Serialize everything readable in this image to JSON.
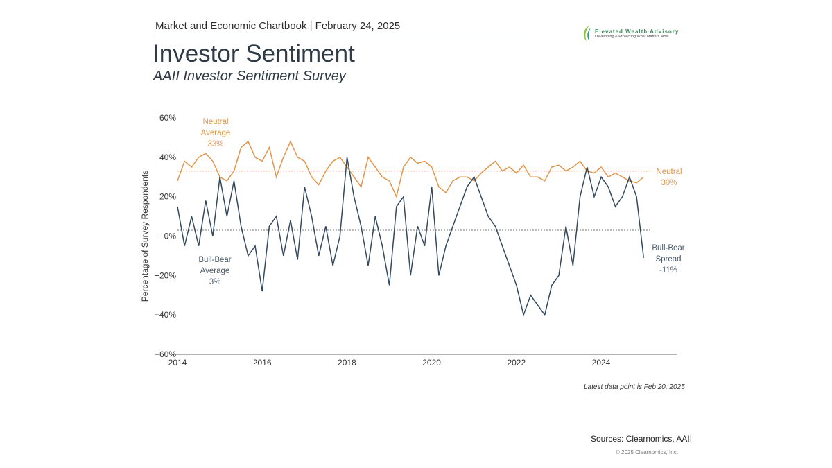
{
  "header": {
    "chartbook": "Market and Economic Chartbook | February 24, 2025",
    "title": "Investor Sentiment",
    "subtitle": "AAII Investor Sentiment Survey"
  },
  "logo": {
    "name": "Elevated Wealth Advisory",
    "tagline": "Developing & Protecting What Matters Most"
  },
  "footer": {
    "note": "Latest data point is Feb 20, 2025",
    "sources": "Sources: Clearnomics,  AAII",
    "copyright": "© 2025 Clearnomics, Inc."
  },
  "colors": {
    "neutral": "#e0954a",
    "spread": "#34495e"
  },
  "chart_data": {
    "type": "line",
    "title": "AAII Investor Sentiment Survey",
    "xlabel": "",
    "ylabel": "Percentage of Survey Respondents",
    "xlim": [
      2014,
      2025.8
    ],
    "ylim": [
      -60,
      60
    ],
    "yticks": [
      60,
      40,
      20,
      0,
      -20,
      -40,
      -60
    ],
    "ytick_labels": [
      "60%",
      "40%",
      "20%",
      "−0%",
      "−20%",
      "−40%",
      "−60%"
    ],
    "xticks": [
      2014,
      2016,
      2018,
      2020,
      2022,
      2024
    ],
    "xtick_labels": [
      "2014",
      "2016",
      "2018",
      "2020",
      "2022",
      "2024"
    ],
    "x_start": 2014,
    "x_step": 0.1667,
    "series": [
      {
        "name": "Neutral",
        "values": [
          28,
          38,
          35,
          40,
          42,
          38,
          30,
          28,
          33,
          45,
          48,
          40,
          38,
          45,
          30,
          40,
          48,
          40,
          38,
          30,
          26,
          33,
          38,
          40,
          35,
          30,
          25,
          40,
          35,
          30,
          28,
          20,
          35,
          40,
          37,
          38,
          35,
          25,
          22,
          28,
          30,
          30,
          28,
          32,
          35,
          38,
          33,
          35,
          32,
          36,
          30,
          30,
          28,
          35,
          36,
          33,
          35,
          38,
          33,
          32,
          35,
          30,
          32,
          30,
          28,
          27,
          30
        ]
      },
      {
        "name": "Bull-Bear Spread",
        "values": [
          15,
          -5,
          10,
          -5,
          18,
          0,
          30,
          10,
          28,
          5,
          -10,
          -5,
          -28,
          5,
          10,
          -10,
          8,
          -12,
          25,
          10,
          -10,
          5,
          -15,
          0,
          40,
          20,
          5,
          -15,
          10,
          -5,
          -25,
          15,
          20,
          -20,
          5,
          -5,
          25,
          -20,
          -5,
          5,
          15,
          25,
          30,
          20,
          10,
          5,
          -5,
          -15,
          -25,
          -40,
          -30,
          -35,
          -40,
          -25,
          -20,
          5,
          -15,
          20,
          35,
          20,
          30,
          25,
          15,
          20,
          30,
          20,
          -11
        ]
      }
    ],
    "reference_lines": [
      {
        "name": "Neutral Average",
        "value": 33
      },
      {
        "name": "Bull-Bear Average",
        "value": 3
      }
    ],
    "annotations": {
      "neutral_avg": [
        "Neutral",
        "Average",
        "33%"
      ],
      "spread_avg": [
        "Bull-Bear",
        "Average",
        "3%"
      ],
      "neutral_last": [
        "Neutral",
        "30%"
      ],
      "spread_last": [
        "Bull-Bear",
        "Spread",
        "-11%"
      ]
    }
  }
}
